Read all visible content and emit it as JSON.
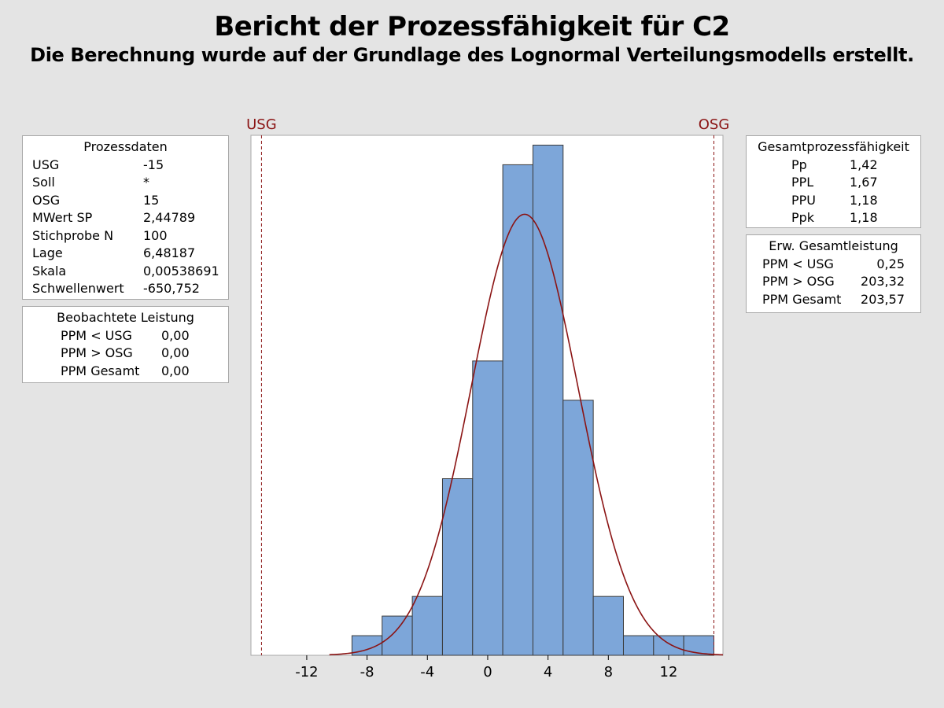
{
  "title": "Bericht der Prozessfähigkeit für C2",
  "subtitle": "Die Berechnung wurde auf der Grundlage des Lognormal Verteilungsmodells erstellt.",
  "prozessdaten": {
    "header": "Prozessdaten",
    "rows": [
      {
        "label": "USG",
        "value": "-15"
      },
      {
        "label": "Soll",
        "value": "*"
      },
      {
        "label": "OSG",
        "value": "15"
      },
      {
        "label": "MWert SP",
        "value": "2,44789"
      },
      {
        "label": "Stichprobe N",
        "value": "100"
      },
      {
        "label": "Lage",
        "value": "6,48187"
      },
      {
        "label": "Skala",
        "value": "0,00538691"
      },
      {
        "label": "Schwellenwert",
        "value": "-650,752"
      }
    ]
  },
  "beobachtete_leistung": {
    "header": "Beobachtete Leistung",
    "rows": [
      {
        "label": "PPM < USG",
        "value": "0,00"
      },
      {
        "label": "PPM > OSG",
        "value": "0,00"
      },
      {
        "label": "PPM Gesamt",
        "value": "0,00"
      }
    ]
  },
  "gesamtprozessfaehigkeit": {
    "header": "Gesamtprozessfähigkeit",
    "rows": [
      {
        "label": "Pp",
        "value": "1,42"
      },
      {
        "label": "PPL",
        "value": "1,67"
      },
      {
        "label": "PPU",
        "value": "1,18"
      },
      {
        "label": "Ppk",
        "value": "1,18"
      }
    ]
  },
  "erw_gesamtleistung": {
    "header": "Erw. Gesamtleistung",
    "rows": [
      {
        "label": "PPM < USG",
        "value": "0,25"
      },
      {
        "label": "PPM > OSG",
        "value": "203,32"
      },
      {
        "label": "PPM Gesamt",
        "value": "203,57"
      }
    ]
  },
  "colors": {
    "bar_fill": "#7da6d9",
    "bar_stroke": "#3a3a3a",
    "spec_line": "#8b1414",
    "curve": "#8b1414",
    "background": "#e4e4e4"
  },
  "chart_data": {
    "type": "bar",
    "subtype": "histogram",
    "xlim": [
      -15.7,
      15.6
    ],
    "ylim": [
      0,
      26.5
    ],
    "xticks": [
      -12,
      -8,
      -4,
      0,
      4,
      8,
      12
    ],
    "xtick_labels": [
      "-12",
      "-8",
      "-4",
      "0",
      "4",
      "8",
      "12"
    ],
    "bins": [
      {
        "from": -9,
        "to": -7,
        "count": 1
      },
      {
        "from": -7,
        "to": -5,
        "count": 2
      },
      {
        "from": -5,
        "to": -3,
        "count": 3
      },
      {
        "from": -3,
        "to": -1,
        "count": 9
      },
      {
        "from": -1,
        "to": 1,
        "count": 15
      },
      {
        "from": 1,
        "to": 3,
        "count": 25
      },
      {
        "from": 3,
        "to": 5,
        "count": 26
      },
      {
        "from": 5,
        "to": 7,
        "count": 13
      },
      {
        "from": 7,
        "to": 9,
        "count": 3
      },
      {
        "from": 9,
        "to": 11,
        "count": 1
      },
      {
        "from": 11,
        "to": 13,
        "count": 1
      },
      {
        "from": 13,
        "to": 15,
        "count": 1
      }
    ],
    "fit_curve": {
      "mean": 2.44789,
      "sd": 3.55,
      "n": 100,
      "bin_width": 2,
      "x_from": -10.5,
      "x_to": 15.6
    },
    "spec_limits": [
      {
        "label": "USG",
        "value": -15
      },
      {
        "label": "OSG",
        "value": 15
      }
    ]
  }
}
